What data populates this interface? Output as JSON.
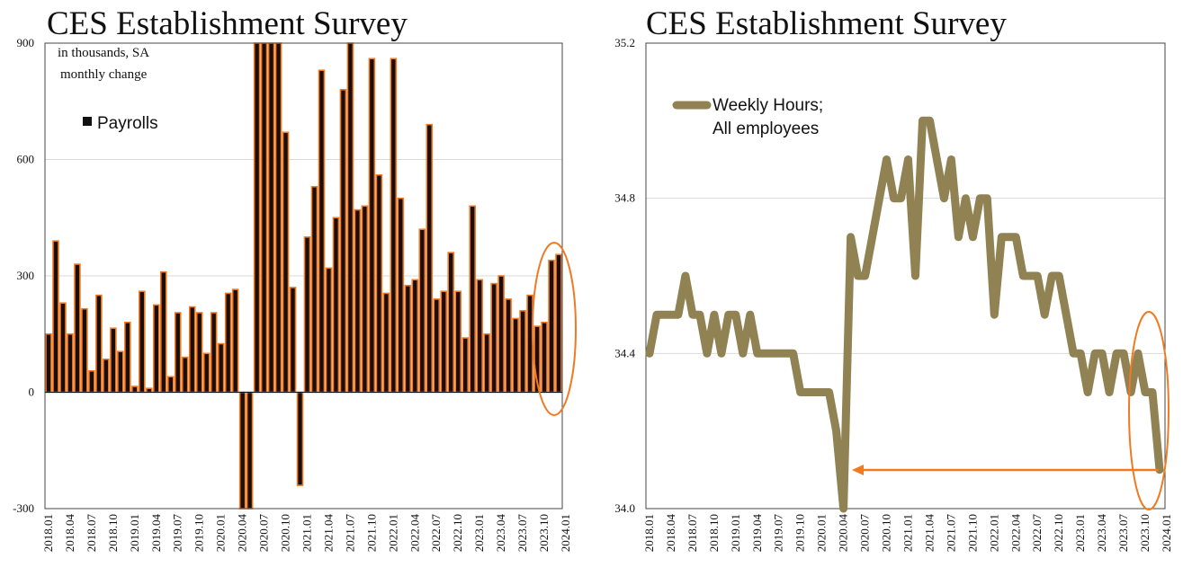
{
  "colors": {
    "bar_fill": "#1a0e08",
    "bar_edge": "#f07a22",
    "line": "#918253",
    "highlight": "#f07a22",
    "grid": "#d9d9d9"
  },
  "left_chart": {
    "title": "CES Establishment Survey",
    "note_line1": "in thousands, SA",
    "note_line2": "monthly change",
    "legend_label": "Payrolls",
    "y_ticks": [
      "900",
      "600",
      "300",
      "0",
      "-300"
    ]
  },
  "right_chart": {
    "title": "CES Establishment Survey",
    "legend_line1": "Weekly Hours;",
    "legend_line2": "All employees",
    "y_ticks": [
      "35.2",
      "34.8",
      "34.4",
      "34.0"
    ]
  },
  "chart_data": [
    {
      "type": "bar",
      "title": "CES Establishment Survey",
      "subtitle": "in thousands, SA monthly change",
      "series": [
        {
          "name": "Payrolls",
          "values": [
            150,
            390,
            230,
            150,
            330,
            215,
            55,
            250,
            85,
            165,
            105,
            180,
            15,
            260,
            10,
            225,
            310,
            40,
            205,
            90,
            220,
            205,
            100,
            205,
            125,
            255,
            265,
            -300,
            -300,
            900,
            900,
            900,
            900,
            670,
            270,
            -240,
            400,
            530,
            830,
            320,
            450,
            780,
            900,
            470,
            480,
            860,
            560,
            255,
            860,
            500,
            275,
            290,
            420,
            690,
            240,
            260,
            360,
            260,
            140,
            480,
            290,
            150,
            280,
            300,
            240,
            190,
            210,
            250,
            170,
            180,
            340,
            355
          ]
        }
      ],
      "x_ticks": [
        "2018.01",
        "2018.04",
        "2018.07",
        "2018.10",
        "2019.01",
        "2019.04",
        "2019.07",
        "2019.10",
        "2020.01",
        "2020.04",
        "2020.07",
        "2020.10",
        "2021.01",
        "2021.04",
        "2021.07",
        "2021.10",
        "2022.01",
        "2022.04",
        "2022.07",
        "2022.10",
        "2023.01",
        "2023.04",
        "2023.07",
        "2023.10",
        "2024.01"
      ],
      "ylim": [
        -300,
        900
      ],
      "legend": "top-left"
    },
    {
      "type": "line",
      "title": "CES Establishment Survey",
      "series": [
        {
          "name": "Weekly Hours; All employees",
          "values": [
            34.4,
            34.5,
            34.5,
            34.5,
            34.5,
            34.6,
            34.5,
            34.5,
            34.4,
            34.5,
            34.4,
            34.5,
            34.5,
            34.4,
            34.5,
            34.4,
            34.4,
            34.4,
            34.4,
            34.4,
            34.4,
            34.3,
            34.3,
            34.3,
            34.3,
            34.3,
            34.2,
            34.0,
            34.7,
            34.6,
            34.6,
            34.7,
            34.8,
            34.9,
            34.8,
            34.8,
            34.9,
            34.6,
            35.0,
            35.0,
            34.9,
            34.8,
            34.9,
            34.7,
            34.8,
            34.7,
            34.8,
            34.8,
            34.5,
            34.7,
            34.7,
            34.7,
            34.6,
            34.6,
            34.6,
            34.5,
            34.6,
            34.6,
            34.5,
            34.4,
            34.4,
            34.3,
            34.4,
            34.4,
            34.3,
            34.4,
            34.4,
            34.3,
            34.4,
            34.3,
            34.3,
            34.1
          ]
        }
      ],
      "x_ticks": [
        "2018.01",
        "2018.04",
        "2018.07",
        "2018.10",
        "2019.01",
        "2019.04",
        "2019.07",
        "2019.10",
        "2020.01",
        "2020.04",
        "2020.07",
        "2020.10",
        "2021.01",
        "2021.04",
        "2021.07",
        "2021.10",
        "2022.01",
        "2022.04",
        "2022.07",
        "2022.10",
        "2023.01",
        "2023.04",
        "2023.07",
        "2023.10",
        "2024.01"
      ],
      "ylim": [
        34.0,
        35.2
      ],
      "legend": "top-left"
    }
  ]
}
